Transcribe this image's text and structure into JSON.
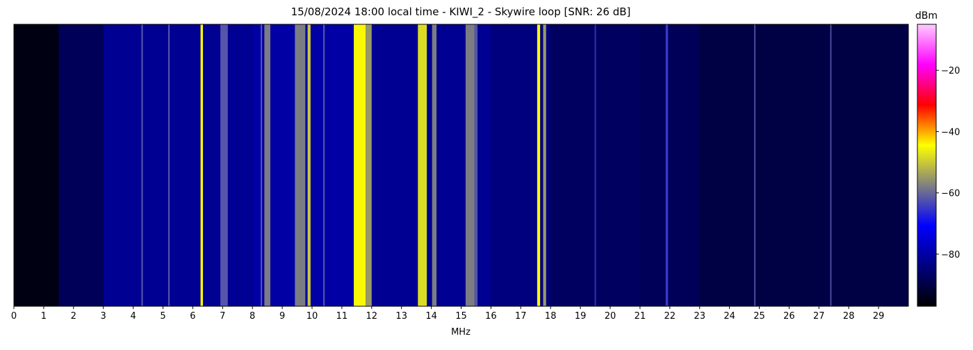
{
  "chart_data": {
    "type": "spectrogram",
    "title": "15/08/2024 18:00 local time - KIWI_2 - Skywire loop [SNR: 26 dB]",
    "x_label": "MHz",
    "colorbar_label": "dBm",
    "xlim": [
      0,
      30
    ],
    "xticks": [
      0,
      1,
      2,
      3,
      4,
      5,
      6,
      7,
      8,
      9,
      10,
      11,
      12,
      13,
      14,
      15,
      16,
      17,
      18,
      19,
      20,
      21,
      22,
      23,
      24,
      25,
      26,
      27,
      28,
      29
    ],
    "clim": [
      -97,
      -5
    ],
    "cticks": [
      {
        "value": -20,
        "label": "−20"
      },
      {
        "value": -40,
        "label": "−40"
      },
      {
        "value": -60,
        "label": "−60"
      },
      {
        "value": -80,
        "label": "−80"
      }
    ],
    "colormap": [
      "#000000",
      "#000080",
      "#0000ff",
      "#808080",
      "#ffff00",
      "#ff0000",
      "#ff00ff",
      "#ffccff"
    ],
    "series": [
      {
        "x": [
          0.75,
          2.25,
          5.5,
          10,
          14,
          17,
          19.5,
          22.5,
          26.5
        ],
        "widths": [
          1.5,
          1.5,
          5,
          4,
          4,
          2,
          3,
          3,
          7
        ],
        "values": [
          -95,
          -88,
          -82,
          -80,
          -82,
          -84,
          -87,
          -88,
          -90
        ]
      },
      {
        "x": [
          4.3,
          5.2,
          6.3,
          7.05,
          8.3,
          8.5,
          9.6,
          9.9,
          10.4,
          11.6,
          11.9,
          13.7,
          14.1,
          15.3,
          15.5,
          17.6,
          17.8,
          19.5,
          21.9,
          24.85,
          27.4
        ],
        "widths": [
          0.05,
          0.05,
          0.08,
          0.25,
          0.05,
          0.2,
          0.35,
          0.1,
          0.05,
          0.4,
          0.2,
          0.3,
          0.15,
          0.3,
          0.1,
          0.1,
          0.1,
          0.04,
          0.08,
          0.04,
          0.04
        ],
        "values": [
          -62,
          -62,
          -45,
          -62,
          -62,
          -58,
          -58,
          -50,
          -62,
          -45,
          -55,
          -48,
          -58,
          -58,
          -62,
          -45,
          -55,
          -65,
          -65,
          -62,
          -62
        ]
      }
    ]
  }
}
